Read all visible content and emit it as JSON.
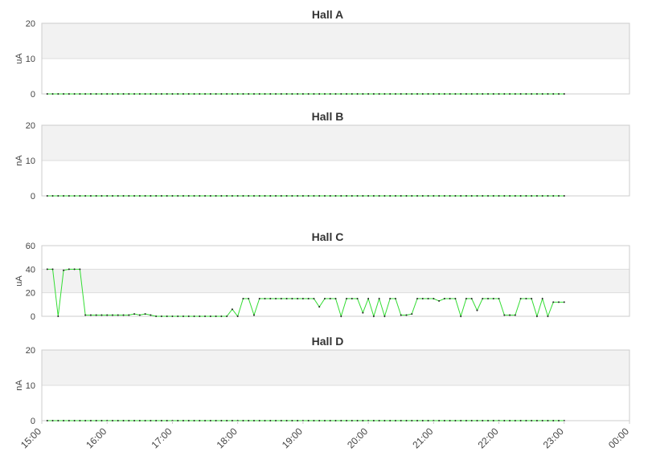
{
  "chart_data": [
    {
      "type": "line",
      "title": "Hall A",
      "y_label": "uA",
      "ylim": [
        0,
        20
      ],
      "yticks": [
        0,
        10,
        20
      ],
      "xlim": [
        0,
        540
      ],
      "x": [
        5,
        10,
        15,
        20,
        25,
        30,
        35,
        40,
        45,
        50,
        55,
        60,
        65,
        70,
        75,
        80,
        85,
        90,
        95,
        100,
        105,
        110,
        115,
        120,
        125,
        130,
        135,
        140,
        145,
        150,
        155,
        160,
        165,
        170,
        175,
        180,
        185,
        190,
        195,
        200,
        205,
        210,
        215,
        220,
        225,
        230,
        235,
        240,
        245,
        250,
        255,
        260,
        265,
        270,
        275,
        280,
        285,
        290,
        295,
        300,
        305,
        310,
        315,
        320,
        325,
        330,
        335,
        340,
        345,
        350,
        355,
        360,
        365,
        370,
        375,
        380,
        385,
        390,
        395,
        400,
        405,
        410,
        415,
        420,
        425,
        430,
        435,
        440,
        445,
        450,
        455,
        460,
        465,
        470,
        475,
        480
      ],
      "values": [
        0,
        0,
        0,
        0,
        0,
        0,
        0,
        0,
        0,
        0,
        0,
        0,
        0,
        0,
        0,
        0,
        0,
        0,
        0,
        0,
        0,
        0,
        0,
        0,
        0,
        0,
        0,
        0,
        0,
        0,
        0,
        0,
        0,
        0,
        0,
        0,
        0,
        0,
        0,
        0,
        0,
        0,
        0,
        0,
        0,
        0,
        0,
        0,
        0,
        0,
        0,
        0,
        0,
        0,
        0,
        0,
        0,
        0,
        0,
        0,
        0,
        0,
        0,
        0,
        0,
        0,
        0,
        0,
        0,
        0,
        0,
        0,
        0,
        0,
        0,
        0,
        0,
        0,
        0,
        0,
        0,
        0,
        0,
        0,
        0,
        0,
        0,
        0,
        0,
        0,
        0,
        0,
        0,
        0,
        0,
        0
      ],
      "color": "#33dd33"
    },
    {
      "type": "line",
      "title": "Hall B",
      "y_label": "nA",
      "ylim": [
        0,
        20
      ],
      "yticks": [
        0,
        10,
        20
      ],
      "xlim": [
        0,
        540
      ],
      "x": [
        5,
        10,
        15,
        20,
        25,
        30,
        35,
        40,
        45,
        50,
        55,
        60,
        65,
        70,
        75,
        80,
        85,
        90,
        95,
        100,
        105,
        110,
        115,
        120,
        125,
        130,
        135,
        140,
        145,
        150,
        155,
        160,
        165,
        170,
        175,
        180,
        185,
        190,
        195,
        200,
        205,
        210,
        215,
        220,
        225,
        230,
        235,
        240,
        245,
        250,
        255,
        260,
        265,
        270,
        275,
        280,
        285,
        290,
        295,
        300,
        305,
        310,
        315,
        320,
        325,
        330,
        335,
        340,
        345,
        350,
        355,
        360,
        365,
        370,
        375,
        380,
        385,
        390,
        395,
        400,
        405,
        410,
        415,
        420,
        425,
        430,
        435,
        440,
        445,
        450,
        455,
        460,
        465,
        470,
        475,
        480
      ],
      "values": [
        0,
        0,
        0,
        0,
        0,
        0,
        0,
        0,
        0,
        0,
        0,
        0,
        0,
        0,
        0,
        0,
        0,
        0,
        0,
        0,
        0,
        0,
        0,
        0,
        0,
        0,
        0,
        0,
        0,
        0,
        0,
        0,
        0,
        0,
        0,
        0,
        0,
        0,
        0,
        0,
        0,
        0,
        0,
        0,
        0,
        0,
        0,
        0,
        0,
        0,
        0,
        0,
        0,
        0,
        0,
        0,
        0,
        0,
        0,
        0,
        0,
        0,
        0,
        0,
        0,
        0,
        0,
        0,
        0,
        0,
        0,
        0,
        0,
        0,
        0,
        0,
        0,
        0,
        0,
        0,
        0,
        0,
        0,
        0,
        0,
        0,
        0,
        0,
        0,
        0,
        0,
        0,
        0,
        0,
        0,
        0
      ],
      "color": "#33dd33"
    },
    {
      "type": "line",
      "title": "Hall C",
      "y_label": "uA",
      "ylim": [
        0,
        60
      ],
      "yticks": [
        0,
        20,
        40,
        60
      ],
      "xlim": [
        0,
        540
      ],
      "x": [
        5,
        10,
        15,
        20,
        25,
        30,
        35,
        40,
        45,
        50,
        55,
        60,
        65,
        70,
        75,
        80,
        85,
        90,
        95,
        100,
        105,
        110,
        115,
        120,
        125,
        130,
        135,
        140,
        145,
        150,
        155,
        160,
        165,
        170,
        175,
        180,
        185,
        190,
        195,
        200,
        205,
        210,
        215,
        220,
        225,
        230,
        235,
        240,
        245,
        250,
        255,
        260,
        265,
        270,
        275,
        280,
        285,
        290,
        295,
        300,
        305,
        310,
        315,
        320,
        325,
        330,
        335,
        340,
        345,
        350,
        355,
        360,
        365,
        370,
        375,
        380,
        385,
        390,
        395,
        400,
        405,
        410,
        415,
        420,
        425,
        430,
        435,
        440,
        445,
        450,
        455,
        460,
        465,
        470,
        475,
        480
      ],
      "values": [
        40,
        40,
        0,
        39,
        40,
        40,
        40,
        1,
        1,
        1,
        1,
        1,
        1,
        1,
        1,
        1,
        2,
        1,
        2,
        1,
        0,
        0,
        0,
        0,
        0,
        0,
        0,
        0,
        0,
        0,
        0,
        0,
        0,
        0,
        6,
        0,
        15,
        15,
        1,
        15,
        15,
        15,
        15,
        15,
        15,
        15,
        15,
        15,
        15,
        15,
        8,
        15,
        15,
        15,
        0,
        15,
        15,
        15,
        3,
        15,
        0,
        15,
        0,
        15,
        15,
        1,
        1,
        2,
        15,
        15,
        15,
        15,
        13,
        15,
        15,
        15,
        0,
        15,
        15,
        5,
        15,
        15,
        15,
        15,
        1,
        1,
        1,
        15,
        15,
        15,
        0,
        15,
        0,
        12,
        12,
        12
      ],
      "color": "#33dd33"
    },
    {
      "type": "line",
      "title": "Hall D",
      "y_label": "nA",
      "ylim": [
        0,
        20
      ],
      "yticks": [
        0,
        10,
        20
      ],
      "xlim": [
        0,
        540
      ],
      "xticks": [
        {
          "value": 0,
          "label": "15:00"
        },
        {
          "value": 60,
          "label": "16:00"
        },
        {
          "value": 120,
          "label": "17:00"
        },
        {
          "value": 180,
          "label": "18:00"
        },
        {
          "value": 240,
          "label": "19:00"
        },
        {
          "value": 300,
          "label": "20:00"
        },
        {
          "value": 360,
          "label": "21:00"
        },
        {
          "value": 420,
          "label": "22:00"
        },
        {
          "value": 480,
          "label": "23:00"
        },
        {
          "value": 540,
          "label": "00:00"
        }
      ],
      "x": [
        5,
        10,
        15,
        20,
        25,
        30,
        35,
        40,
        45,
        50,
        55,
        60,
        65,
        70,
        75,
        80,
        85,
        90,
        95,
        100,
        105,
        110,
        115,
        120,
        125,
        130,
        135,
        140,
        145,
        150,
        155,
        160,
        165,
        170,
        175,
        180,
        185,
        190,
        195,
        200,
        205,
        210,
        215,
        220,
        225,
        230,
        235,
        240,
        245,
        250,
        255,
        260,
        265,
        270,
        275,
        280,
        285,
        290,
        295,
        300,
        305,
        310,
        315,
        320,
        325,
        330,
        335,
        340,
        345,
        350,
        355,
        360,
        365,
        370,
        375,
        380,
        385,
        390,
        395,
        400,
        405,
        410,
        415,
        420,
        425,
        430,
        435,
        440,
        445,
        450,
        455,
        460,
        465,
        470,
        475,
        480
      ],
      "values": [
        0,
        0,
        0,
        0,
        0,
        0,
        0,
        0,
        0,
        0,
        0,
        0,
        0,
        0,
        0,
        0,
        0,
        0,
        0,
        0,
        0,
        0,
        0,
        0,
        0,
        0,
        0,
        0,
        0,
        0,
        0,
        0,
        0,
        0,
        0,
        0,
        0,
        0,
        0,
        0,
        0,
        0,
        0,
        0,
        0,
        0,
        0,
        0,
        0,
        0,
        0,
        0,
        0,
        0,
        0,
        0,
        0,
        0,
        0,
        0,
        0,
        0,
        0,
        0,
        0,
        0,
        0,
        0,
        0,
        0,
        0,
        0,
        0,
        0,
        0,
        0,
        0,
        0,
        0,
        0,
        0,
        0,
        0,
        0,
        0,
        0,
        0,
        0,
        0,
        0,
        0,
        0,
        0,
        0,
        0,
        0
      ],
      "color": "#33dd33"
    }
  ]
}
